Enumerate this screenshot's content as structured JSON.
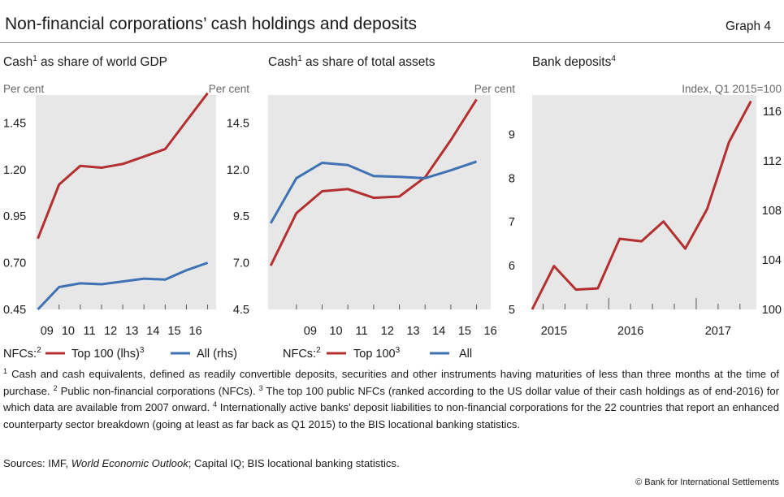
{
  "header": {
    "title": "Non-financial corporations’ cash holdings and deposits",
    "graph_label": "Graph 4"
  },
  "colors": {
    "red": "#b42f2f",
    "blue": "#3f72b4",
    "panel_bg": "#e7e7e7",
    "tick": "#555555"
  },
  "chart_data": [
    {
      "type": "line",
      "title": "Cash",
      "title_sup": "1",
      "title_rest": " as share of world GDP",
      "left_unit": "Per cent",
      "right_unit": "Per cent",
      "x": [
        2008,
        2009,
        2010,
        2011,
        2012,
        2013,
        2014,
        2015,
        2016
      ],
      "xtick_labels": [
        "09",
        "10",
        "11",
        "12",
        "13",
        "14",
        "15",
        "16"
      ],
      "ylim_left": [
        0.45,
        1.6
      ],
      "yticks_left": [
        0.45,
        0.7,
        0.95,
        1.2,
        1.45
      ],
      "ytick_labels_left": [
        "0.45",
        "0.70",
        "0.95",
        "1.20",
        "1.45"
      ],
      "ylim_right": [
        4.5,
        16
      ],
      "yticks_right": [
        4.5,
        7.0,
        9.5,
        12.0,
        14.5
      ],
      "ytick_labels_right": [
        "4.5",
        "7.0",
        "9.5",
        "12.0",
        "14.5"
      ],
      "series": [
        {
          "axis": "left",
          "color": "red",
          "values": [
            0.83,
            1.12,
            1.22,
            1.21,
            1.23,
            1.27,
            1.31,
            1.46,
            1.61
          ]
        },
        {
          "axis": "right",
          "color": "blue",
          "values": [
            4.5,
            5.7,
            5.9,
            5.85,
            6.0,
            6.15,
            6.1,
            6.6,
            7.0
          ]
        }
      ],
      "legend": {
        "prefix": "NFCs:",
        "prefix_sup": "2",
        "red": "Top 100 (lhs)",
        "red_sup": "3",
        "blue": "All (rhs)"
      }
    },
    {
      "type": "line",
      "title": "Cash",
      "title_sup": "1",
      "title_rest": " as share of total assets",
      "right_unit": "Per cent",
      "x": [
        2008,
        2009,
        2010,
        2011,
        2012,
        2013,
        2014,
        2015,
        2016
      ],
      "xtick_labels": [
        "09",
        "10",
        "11",
        "12",
        "13",
        "14",
        "15",
        "16"
      ],
      "ylim": [
        5,
        9.9
      ],
      "yticks": [
        5,
        6,
        7,
        8,
        9
      ],
      "ytick_labels": [
        "5",
        "6",
        "7",
        "8",
        "9"
      ],
      "series": [
        {
          "color": "red",
          "values": [
            6.0,
            7.2,
            7.7,
            7.75,
            7.55,
            7.58,
            8.02,
            8.87,
            9.8
          ]
        },
        {
          "color": "blue",
          "values": [
            6.97,
            8.0,
            8.35,
            8.3,
            8.05,
            8.03,
            8.0,
            8.18,
            8.38
          ]
        }
      ],
      "legend": {
        "prefix": "NFCs:",
        "prefix_sup": "2",
        "red": "Top 100",
        "red_sup": "3",
        "blue": "All"
      }
    },
    {
      "type": "line",
      "title": "Bank deposits",
      "title_sup": "4",
      "right_unit": "Index, Q1 2015=100",
      "x": [
        "2015Q1",
        "2015Q2",
        "2015Q3",
        "2015Q4",
        "2016Q1",
        "2016Q2",
        "2016Q3",
        "2016Q4",
        "2017Q1",
        "2017Q2",
        "2017Q3"
      ],
      "xtick_labels": [
        "2015",
        "2016",
        "2017"
      ],
      "ylim": [
        100,
        117.3
      ],
      "yticks": [
        100,
        104,
        108,
        112,
        116
      ],
      "ytick_labels": [
        "100",
        "104",
        "108",
        "112",
        "116"
      ],
      "series": [
        {
          "color": "red",
          "values": [
            100.0,
            103.5,
            101.6,
            101.7,
            105.7,
            105.5,
            107.1,
            104.9,
            108.1,
            113.5,
            116.8
          ]
        }
      ]
    }
  ],
  "notes": {
    "n1_sup": "1",
    "n1": " Cash and cash equivalents, defined as readily convertible deposits, securities and other instruments having maturities of less than three months at the time of purchase.   ",
    "n2_sup": "2",
    "n2": " Public non-financial corporations (NFCs).   ",
    "n3_sup": "3",
    "n3": " The top 100 public NFCs (ranked according to the US dollar value of their cash holdings as of end-2016) for which data are available from 2007 onward.   ",
    "n4_sup": "4",
    "n4": " Internationally active banks’ deposit liabilities to non-financial corporations for the 22 countries that report an enhanced counterparty sector breakdown (going at least as far back as Q1 2015) to the BIS locational banking statistics."
  },
  "sources": {
    "prefix": "Sources: IMF, ",
    "italic": "World Economic Outlook",
    "rest": "; Capital IQ; BIS locational banking statistics."
  },
  "copyright": "© Bank for International Settlements"
}
